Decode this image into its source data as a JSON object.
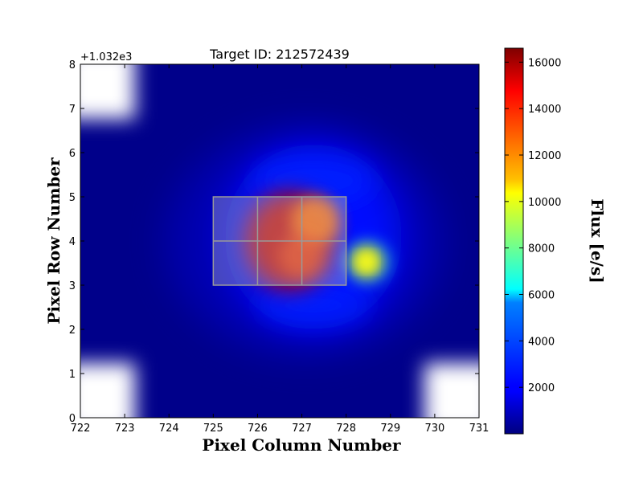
{
  "chart_data": {
    "type": "heatmap",
    "title": "Target ID: 212572439",
    "xlabel": "Pixel Column Number",
    "ylabel": "Pixel Row Number",
    "y_offset_label": "+1.032e3",
    "xlim": [
      722,
      731
    ],
    "ylim": [
      0,
      8
    ],
    "x_ticks": [
      722,
      723,
      724,
      725,
      726,
      727,
      728,
      729,
      730,
      731
    ],
    "y_ticks": [
      0,
      1,
      2,
      3,
      4,
      5,
      6,
      7,
      8
    ],
    "colorbar": {
      "label": "Flux [e/s]",
      "colormap": "jet",
      "range": [
        0,
        16600
      ],
      "ticks": [
        2000,
        4000,
        6000,
        8000,
        10000,
        12000,
        14000,
        16000
      ]
    },
    "aperture_grid": {
      "columns": [
        725,
        726,
        727,
        728
      ],
      "rows": [
        3,
        4,
        5
      ]
    },
    "sources": [
      {
        "x": 726.7,
        "y": 4.0,
        "flux": 15500
      },
      {
        "x": 727.4,
        "y": 4.5,
        "flux": 13500
      },
      {
        "x": 728.5,
        "y": 3.5,
        "flux": 10500
      }
    ],
    "no_data_regions": [
      "top-left corner",
      "bottom-left corner",
      "bottom-right corner"
    ]
  }
}
